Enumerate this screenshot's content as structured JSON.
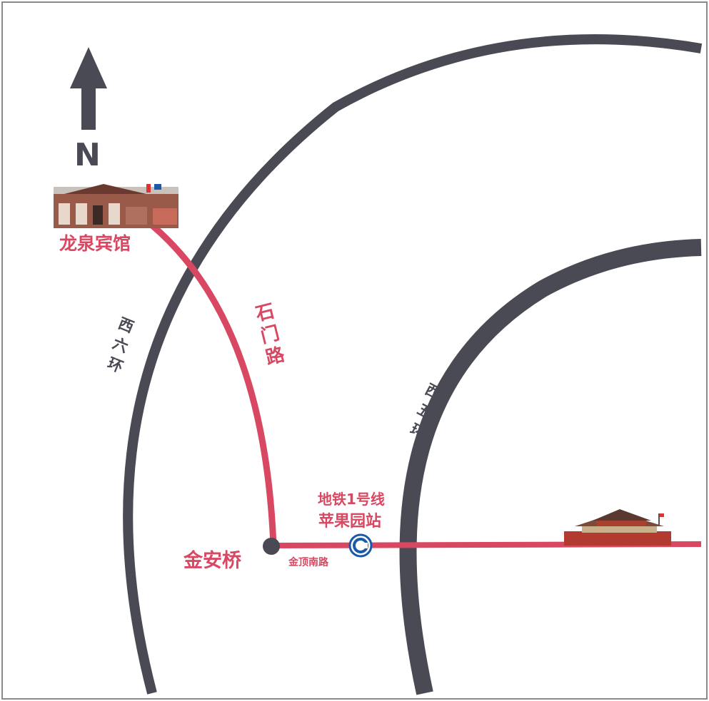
{
  "map": {
    "north_label": "N",
    "places": {
      "hotel": "龙泉宾馆",
      "bridge": "金安桥",
      "metro_line": "地铁1号线",
      "metro_station": "苹果园站"
    },
    "roads": {
      "shimen_road": [
        "石",
        "门",
        "路"
      ],
      "jinding_south_road": "金顶南路",
      "west_6th_ring": [
        "西",
        "六",
        "环"
      ],
      "west_5th_ring": [
        "西",
        "五",
        "环"
      ]
    },
    "colors": {
      "route": "#d94863",
      "ring_road": "#4a4a55",
      "metro": "#1a5aa8",
      "frame": "#8a8a8a"
    },
    "icons": {
      "north": "north-arrow-icon",
      "hotel": "hotel-building-icon",
      "landmark": "tiananmen-icon",
      "metro": "subway-icon"
    }
  }
}
